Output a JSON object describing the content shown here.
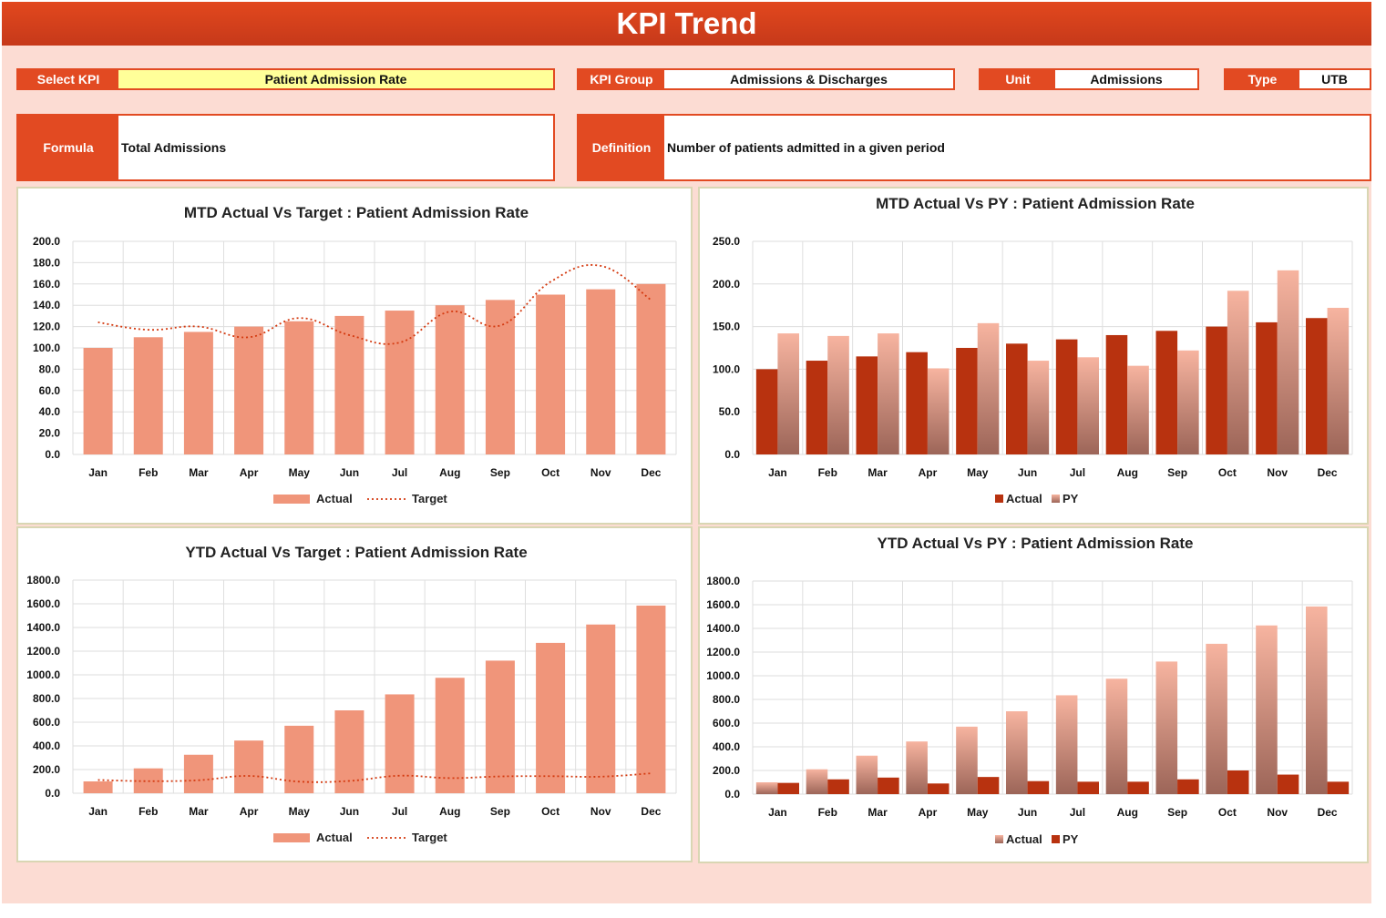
{
  "header": {
    "title": "KPI Trend"
  },
  "filters": {
    "select_kpi": {
      "label": "Select KPI",
      "value": "Patient Admission Rate"
    },
    "kpi_group": {
      "label": "KPI Group",
      "value": "Admissions & Discharges"
    },
    "unit": {
      "label": "Unit",
      "value": "Admissions"
    },
    "type": {
      "label": "Type",
      "value": "UTB"
    }
  },
  "formula": {
    "label": "Formula",
    "value": "Total Admissions"
  },
  "definition": {
    "label": "Definition",
    "value": "Number of patients admitted in a given period"
  },
  "colors": {
    "actual_light": "#f0957a",
    "target_line": "#d43a10",
    "actual_dark": "#b8320f",
    "py_gradient_top": "#f7b4a0",
    "py_gradient_bottom": "#9c6558",
    "field_accent": "#e24a22",
    "kpi_highlight": "#ffff99"
  },
  "chart_data": [
    {
      "id": "mtd_target",
      "type": "bar+line",
      "title": "MTD Actual Vs Target : Patient Admission Rate",
      "categories": [
        "Jan",
        "Feb",
        "Mar",
        "Apr",
        "May",
        "Jun",
        "Jul",
        "Aug",
        "Sep",
        "Oct",
        "Nov",
        "Dec"
      ],
      "ylim": [
        0,
        200
      ],
      "yticks": [
        "200.0",
        "180.0",
        "160.0",
        "140.0",
        "120.0",
        "100.0",
        "80.0",
        "60.0",
        "40.0",
        "20.0",
        "0.0"
      ],
      "series": [
        {
          "name": "Actual",
          "kind": "bar",
          "values": [
            100,
            110,
            115,
            120,
            125,
            130,
            135,
            140,
            145,
            150,
            155,
            160
          ]
        },
        {
          "name": "Target",
          "kind": "line",
          "values": [
            124,
            117,
            120,
            110,
            128,
            112,
            105,
            134,
            121,
            162,
            177,
            145
          ]
        }
      ],
      "legend": "bottom"
    },
    {
      "id": "mtd_py",
      "type": "bar",
      "title": "MTD Actual Vs PY : Patient Admission Rate",
      "categories": [
        "Jan",
        "Feb",
        "Mar",
        "Apr",
        "May",
        "Jun",
        "Jul",
        "Aug",
        "Sep",
        "Oct",
        "Nov",
        "Dec"
      ],
      "ylim": [
        0,
        250
      ],
      "yticks": [
        "250.0",
        "200.0",
        "150.0",
        "100.0",
        "50.0",
        "0.0"
      ],
      "series": [
        {
          "name": "Actual",
          "kind": "bar",
          "values": [
            100,
            110,
            115,
            120,
            125,
            130,
            135,
            140,
            145,
            150,
            155,
            160
          ]
        },
        {
          "name": "PY",
          "kind": "bar-gradient",
          "values": [
            142,
            139,
            142,
            101,
            154,
            110,
            114,
            104,
            122,
            192,
            216,
            172
          ]
        }
      ],
      "legend": "bottom"
    },
    {
      "id": "ytd_target",
      "type": "bar+line",
      "title": "YTD Actual Vs Target : Patient Admission Rate",
      "categories": [
        "Jan",
        "Feb",
        "Mar",
        "Apr",
        "May",
        "Jun",
        "Jul",
        "Aug",
        "Sep",
        "Oct",
        "Nov",
        "Dec"
      ],
      "ylim": [
        0,
        1800
      ],
      "yticks": [
        "1800.0",
        "1600.0",
        "1400.0",
        "1200.0",
        "1000.0",
        "800.0",
        "600.0",
        "400.0",
        "200.0",
        "0.0"
      ],
      "series": [
        {
          "name": "Actual",
          "kind": "bar",
          "values": [
            100,
            210,
            325,
            445,
            570,
            700,
            835,
            975,
            1120,
            1270,
            1425,
            1585
          ]
        },
        {
          "name": "Target",
          "kind": "line",
          "values": [
            112,
            102,
            110,
            146,
            98,
            104,
            148,
            128,
            142,
            144,
            140,
            168
          ]
        }
      ],
      "legend": "bottom"
    },
    {
      "id": "ytd_py",
      "type": "bar",
      "title": "YTD Actual Vs PY : Patient Admission Rate",
      "categories": [
        "Jan",
        "Feb",
        "Mar",
        "Apr",
        "May",
        "Jun",
        "Jul",
        "Aug",
        "Sep",
        "Oct",
        "Nov",
        "Dec"
      ],
      "ylim": [
        0,
        1800
      ],
      "yticks": [
        "1800.0",
        "1600.0",
        "1400.0",
        "1200.0",
        "1000.0",
        "800.0",
        "600.0",
        "400.0",
        "200.0",
        "0.0"
      ],
      "series": [
        {
          "name": "Actual",
          "kind": "bar-gradient",
          "values": [
            100,
            210,
            325,
            445,
            570,
            700,
            835,
            975,
            1120,
            1270,
            1425,
            1585
          ]
        },
        {
          "name": "PY",
          "kind": "bar",
          "values": [
            95,
            125,
            140,
            90,
            145,
            110,
            105,
            105,
            125,
            200,
            165,
            105
          ]
        }
      ],
      "legend": "bottom"
    }
  ]
}
